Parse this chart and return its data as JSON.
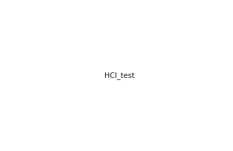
{
  "bg_color": "#ffffff",
  "line_color": "#1a1a1a",
  "line_width": 1.2,
  "font_size": 7.5,
  "hcl_font_size": 8.5
}
